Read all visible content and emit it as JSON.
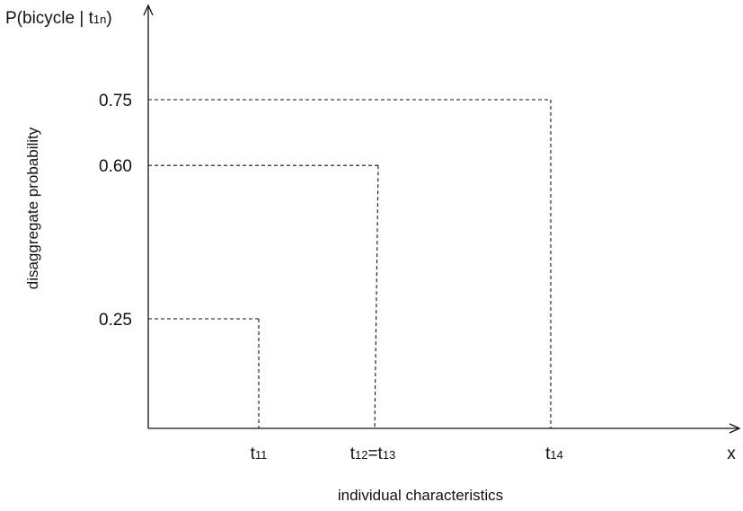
{
  "chart_data": {
    "type": "line",
    "title": "",
    "y_axis": {
      "top_label": {
        "prefix": "P(bicycle | t",
        "subscript": "1n",
        "suffix": ")"
      },
      "side_label": "disaggregate probability",
      "ticks": [
        "0.25",
        "0.60",
        "0.75"
      ],
      "tick_values": [
        0.25,
        0.6,
        0.75
      ]
    },
    "x_axis": {
      "end_label": "x",
      "label": "individual characteristics",
      "ticks": [
        {
          "base": "t",
          "subscript": "11",
          "mid": "",
          "base2": "",
          "subscript2": ""
        },
        {
          "base": "t",
          "subscript": "12",
          "mid": "=",
          "base2": "t",
          "subscript2": "13"
        },
        {
          "base": "t",
          "subscript": "14",
          "mid": "",
          "base2": "",
          "subscript2": ""
        }
      ]
    },
    "points": [
      {
        "x": "t11",
        "y": 0.25
      },
      {
        "x": "t12",
        "y": 0.6
      },
      {
        "x": "t13",
        "y": 0.6
      },
      {
        "x": "t14",
        "y": 0.75
      }
    ],
    "guides": "dashed",
    "grid": false
  }
}
